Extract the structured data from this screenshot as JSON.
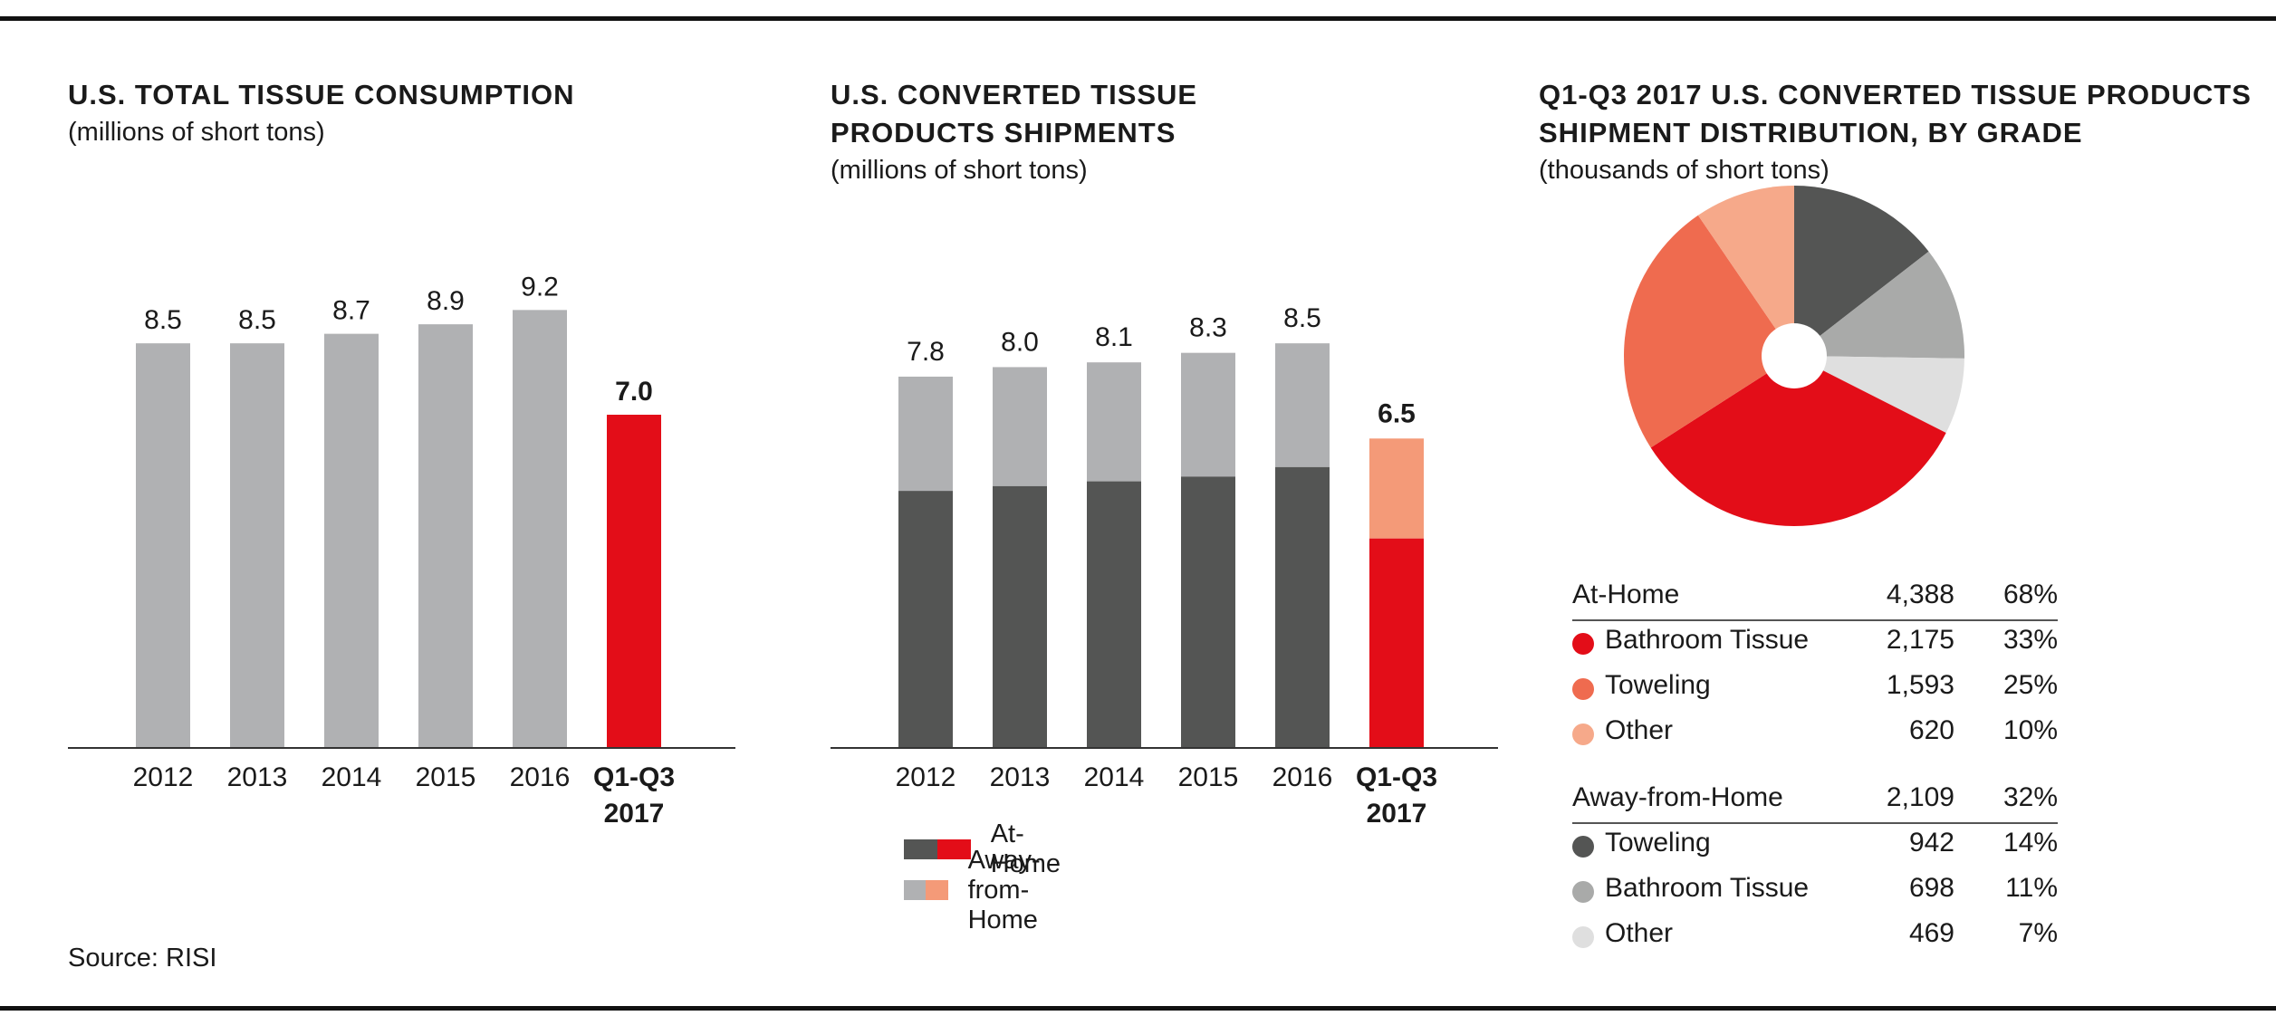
{
  "colors": {
    "bar_gray": "#b0b1b3",
    "highlight_red": "#e30d18",
    "dark_gray": "#545554",
    "light_salmon": "#f49a78",
    "towel_orange": "#ef6b4f",
    "other_peach": "#f6a98a",
    "mid_gray": "#a9aaa9",
    "pale_gray": "#dfdfdf"
  },
  "panel1": {
    "title": "U.S. TOTAL TISSUE CONSUMPTION",
    "subtitle": "(millions of short tons)"
  },
  "panel2": {
    "title_line1": "U.S. CONVERTED TISSUE",
    "title_line2": "PRODUCTS SHIPMENTS",
    "subtitle": "(millions of short tons)",
    "legend": [
      {
        "label": "At-Home"
      },
      {
        "label": "Away-from-Home"
      }
    ]
  },
  "panel3": {
    "title_line1": "Q1-Q3 2017 U.S. CONVERTED TISSUE PRODUCTS",
    "title_line2": "SHIPMENT DISTRIBUTION, BY GRADE",
    "subtitle": "(thousands of short tons)",
    "table": {
      "at_home": {
        "label": "At-Home",
        "value": "4,388",
        "pct": "68%",
        "rows": [
          {
            "label": "Bathroom Tissue",
            "value": "2,175",
            "pct": "33%"
          },
          {
            "label": "Toweling",
            "value": "1,593",
            "pct": "25%"
          },
          {
            "label": "Other",
            "value": "620",
            "pct": "10%"
          }
        ]
      },
      "away": {
        "label": "Away-from-Home",
        "value": "2,109",
        "pct": "32%",
        "rows": [
          {
            "label": "Toweling",
            "value": "942",
            "pct": "14%"
          },
          {
            "label": "Bathroom Tissue",
            "value": "698",
            "pct": "11%"
          },
          {
            "label": "Other",
            "value": "469",
            "pct": "7%"
          }
        ]
      }
    }
  },
  "source": "Source: RISI",
  "chart_data": [
    {
      "type": "bar",
      "title": "U.S. TOTAL TISSUE CONSUMPTION",
      "subtitle": "(millions of short tons)",
      "categories": [
        "2012",
        "2013",
        "2014",
        "2015",
        "2016",
        "Q1-Q3 2017"
      ],
      "values": [
        8.5,
        8.5,
        8.7,
        8.9,
        9.2,
        7.0
      ],
      "value_labels": [
        "8.5",
        "8.5",
        "8.7",
        "8.9",
        "9.2",
        "7.0"
      ],
      "highlight_index": 5,
      "ylim": [
        0,
        10.5
      ],
      "grid": false
    },
    {
      "type": "bar",
      "stacked": true,
      "title": "U.S. CONVERTED TISSUE PRODUCTS SHIPMENTS",
      "subtitle": "(millions of short tons)",
      "categories": [
        "2012",
        "2013",
        "2014",
        "2015",
        "2016",
        "Q1-Q3 2017"
      ],
      "series": [
        {
          "name": "At-Home",
          "values": [
            5.4,
            5.5,
            5.6,
            5.7,
            5.9,
            4.4
          ]
        },
        {
          "name": "Away-from-Home",
          "values": [
            2.4,
            2.5,
            2.5,
            2.6,
            2.6,
            2.1
          ]
        }
      ],
      "totals": [
        7.8,
        8.0,
        8.1,
        8.3,
        8.5,
        6.5
      ],
      "total_labels": [
        "7.8",
        "8.0",
        "8.1",
        "8.3",
        "8.5",
        "6.5"
      ],
      "highlight_index": 5,
      "ylim": [
        0,
        10.5
      ],
      "legend": "bottom-left",
      "grid": false
    },
    {
      "type": "pie",
      "donut": true,
      "title": "Q1-Q3 2017 U.S. CONVERTED TISSUE PRODUCTS SHIPMENT DISTRIBUTION, BY GRADE",
      "subtitle": "(thousands of short tons)",
      "slices": [
        {
          "label": "Toweling (Away-from-Home)",
          "value": 942,
          "color": "#545554"
        },
        {
          "label": "Bathroom Tissue (Away-from-Home)",
          "value": 698,
          "color": "#a9aaa9"
        },
        {
          "label": "Other (Away-from-Home)",
          "value": 469,
          "color": "#dfdfdf"
        },
        {
          "label": "Bathroom Tissue (At-Home)",
          "value": 2175,
          "color": "#e30d18"
        },
        {
          "label": "Toweling (At-Home)",
          "value": 1593,
          "color": "#ef6b4f"
        },
        {
          "label": "Other (At-Home)",
          "value": 620,
          "color": "#f6a98a"
        }
      ]
    }
  ]
}
